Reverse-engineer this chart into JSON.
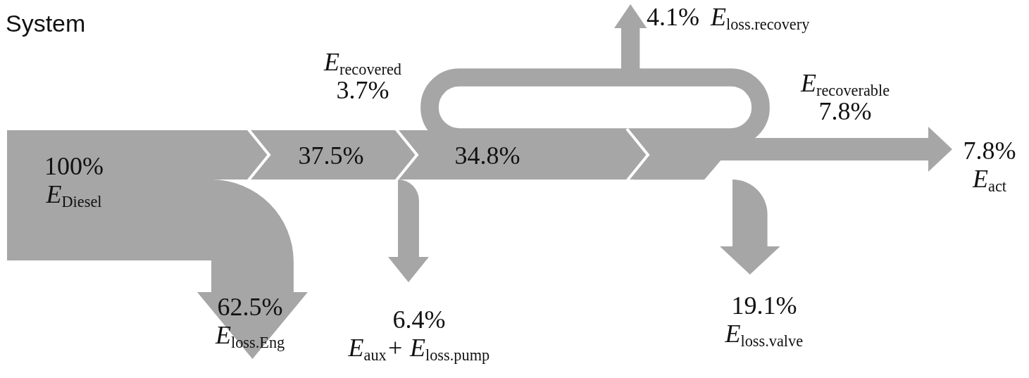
{
  "chart_data": {
    "type": "other",
    "title": "System",
    "color": "#a6a6a6",
    "categories": [
      "E$_{Diesel}$",
      "E$_{loss.Eng}$",
      "E$_{aux}$+ E$_{loss.pump}$",
      "E$_{recovered}$",
      "E$_{recoverable}$",
      "E$_{loss.recovery}$",
      "E$_{loss.valve}$",
      "E$_{act}$"
    ],
    "values": [
      100,
      62.5,
      6.4,
      3.7,
      7.8,
      4.1,
      19.1,
      7.8
    ],
    "value_labels": [
      "100%",
      "62.5%",
      "6.4%",
      "3.7%",
      "7.8%",
      "4.1%",
      "19.1%",
      "7.8%"
    ],
    "annotations": [
      "37.5%",
      "34.8%"
    ]
  }
}
